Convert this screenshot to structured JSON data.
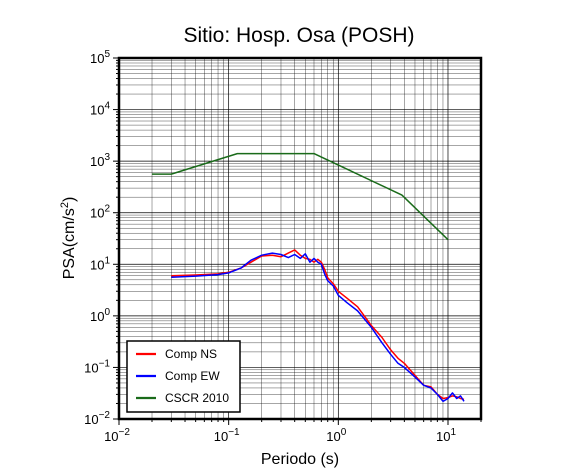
{
  "chart_data": {
    "type": "line",
    "title": "Sitio: Hosp. Osa (POSH)",
    "xlabel": "Periodo (s)",
    "ylabel_main": "PSA(cm/s",
    "ylabel_sup": "2",
    "ylabel_tail": ")",
    "x_scale": "log",
    "y_scale": "log",
    "xlim": [
      0.01,
      20
    ],
    "ylim": [
      0.01,
      100000
    ],
    "grid": true,
    "legend_position": "bottom-left",
    "x_ticks": [
      {
        "value": 0.01,
        "base": "10",
        "exp": "−2"
      },
      {
        "value": 0.1,
        "base": "10",
        "exp": "−1"
      },
      {
        "value": 1,
        "base": "10",
        "exp": "0"
      },
      {
        "value": 10,
        "base": "10",
        "exp": "1"
      }
    ],
    "y_ticks": [
      {
        "value": 0.01,
        "base": "10",
        "exp": "−2"
      },
      {
        "value": 0.1,
        "base": "10",
        "exp": "−1"
      },
      {
        "value": 1,
        "base": "10",
        "exp": "0"
      },
      {
        "value": 10,
        "base": "10",
        "exp": "1"
      },
      {
        "value": 100,
        "base": "10",
        "exp": "2"
      },
      {
        "value": 1000,
        "base": "10",
        "exp": "3"
      },
      {
        "value": 10000,
        "base": "10",
        "exp": "4"
      },
      {
        "value": 100000,
        "base": "10",
        "exp": "5"
      }
    ],
    "series": [
      {
        "name": "Comp NS",
        "color": "#ff0000",
        "x": [
          0.03,
          0.05,
          0.08,
          0.1,
          0.13,
          0.16,
          0.2,
          0.25,
          0.3,
          0.35,
          0.4,
          0.45,
          0.5,
          0.55,
          0.6,
          0.65,
          0.7,
          0.75,
          0.8,
          0.9,
          1.0,
          1.2,
          1.5,
          2.0,
          2.5,
          3.0,
          3.5,
          4.0,
          5.0,
          6.0,
          7.0,
          8.0,
          9.0,
          10.0,
          11.0,
          12.0,
          13.0,
          14.0
        ],
        "y": [
          6.0,
          6.2,
          6.5,
          7.0,
          8.5,
          11.0,
          14.5,
          15.0,
          14.0,
          16.5,
          19.0,
          15.0,
          13.0,
          12.5,
          11.0,
          12.5,
          11.0,
          8.0,
          5.5,
          4.2,
          3.0,
          2.2,
          1.5,
          0.65,
          0.38,
          0.22,
          0.15,
          0.12,
          0.07,
          0.045,
          0.042,
          0.03,
          0.025,
          0.026,
          0.028,
          0.027,
          0.025,
          0.024
        ]
      },
      {
        "name": "Comp EW",
        "color": "#0000ff",
        "x": [
          0.03,
          0.05,
          0.08,
          0.1,
          0.13,
          0.16,
          0.2,
          0.25,
          0.3,
          0.35,
          0.4,
          0.45,
          0.5,
          0.55,
          0.6,
          0.65,
          0.7,
          0.75,
          0.8,
          0.9,
          1.0,
          1.2,
          1.5,
          2.0,
          2.5,
          3.0,
          3.5,
          4.0,
          5.0,
          6.0,
          7.0,
          8.0,
          9.0,
          10.0,
          11.0,
          12.0,
          13.0,
          14.0
        ],
        "y": [
          5.6,
          5.9,
          6.3,
          6.8,
          8.5,
          12.0,
          15.0,
          16.5,
          15.5,
          13.5,
          15.5,
          13.0,
          16.0,
          11.0,
          13.0,
          11.0,
          10.0,
          6.5,
          4.8,
          3.8,
          2.5,
          1.8,
          1.25,
          0.6,
          0.3,
          0.18,
          0.12,
          0.1,
          0.065,
          0.045,
          0.04,
          0.03,
          0.022,
          0.025,
          0.032,
          0.025,
          0.028,
          0.022
        ]
      },
      {
        "name": "CSCR 2010",
        "color": "#1a6b1a",
        "x": [
          0.02,
          0.03,
          0.12,
          0.6,
          3.8,
          10.0
        ],
        "y": [
          560,
          560,
          1400,
          1400,
          220,
          30
        ]
      }
    ]
  }
}
